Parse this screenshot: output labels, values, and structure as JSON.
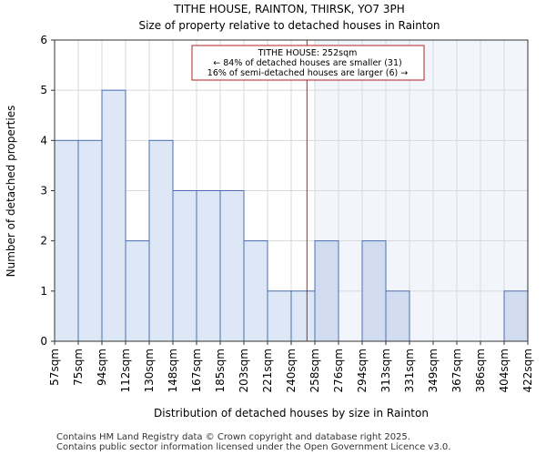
{
  "chart_data": {
    "type": "bar",
    "title": "TITHE HOUSE, RAINTON, THIRSK, YO7 3PH",
    "subtitle": "Size of property relative to detached houses in Rainton",
    "xlabel": "Distribution of detached houses by size in Rainton",
    "ylabel": "Number of detached properties",
    "x_tick_labels": [
      "57sqm",
      "75sqm",
      "94sqm",
      "112sqm",
      "130sqm",
      "148sqm",
      "167sqm",
      "185sqm",
      "203sqm",
      "221sqm",
      "240sqm",
      "258sqm",
      "276sqm",
      "294sqm",
      "313sqm",
      "331sqm",
      "349sqm",
      "367sqm",
      "386sqm",
      "404sqm",
      "422sqm"
    ],
    "values": [
      4,
      4,
      5,
      2,
      4,
      3,
      3,
      3,
      2,
      1,
      1,
      2,
      0,
      2,
      1,
      0,
      0,
      0,
      0,
      1
    ],
    "y_ticks": [
      0,
      1,
      2,
      3,
      4,
      5,
      6
    ],
    "ylim": [
      0,
      6
    ],
    "grid": true,
    "highlight_from_bin": 11,
    "property_size_sqm": 252,
    "colors": {
      "bar_normal": "#dde7f5",
      "bar_highlight": "#d1dcf0",
      "bar_edge": "#4a6fb0",
      "region_shade": "#f2f5fc",
      "marker_line": "#b22222",
      "grid": "#d9d9d9"
    },
    "annotation": {
      "line1": "TITHE HOUSE: 252sqm",
      "line2": "← 84% of detached houses are smaller (31)",
      "line3": "16% of semi-detached houses are larger (6) →"
    }
  },
  "footer": {
    "line1": "Contains HM Land Registry data © Crown copyright and database right 2025.",
    "line2": "Contains public sector information licensed under the Open Government Licence v3.0."
  }
}
